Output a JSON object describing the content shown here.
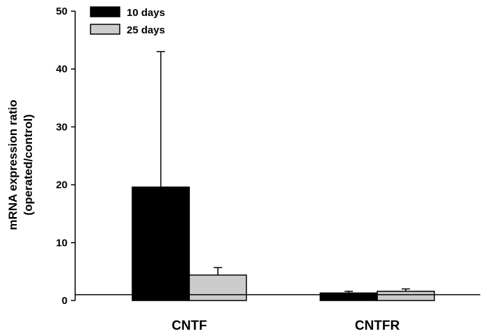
{
  "chart_data": {
    "type": "bar",
    "categories": [
      "CNTF",
      "CNTFR"
    ],
    "series": [
      {
        "name": "10 days",
        "values": [
          19.6,
          1.3
        ],
        "error": [
          23.4,
          0.3
        ],
        "color": "#000000"
      },
      {
        "name": "25 days",
        "values": [
          4.4,
          1.6
        ],
        "error": [
          1.3,
          0.4
        ],
        "color": "#cccccc"
      }
    ],
    "title": "",
    "xlabel": "",
    "ylabel": [
      "mRNA expression ratio",
      "(operated/control)"
    ],
    "ylim": [
      0,
      50
    ],
    "yticks": [
      0,
      10,
      20,
      30,
      40,
      50
    ],
    "reference_line": 1,
    "legend_position": "top-left",
    "grid": false
  }
}
